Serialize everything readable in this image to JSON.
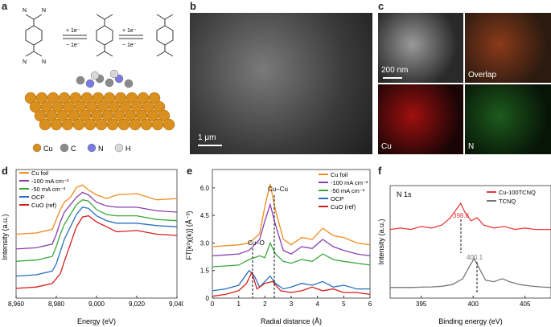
{
  "panels": {
    "a": {
      "label": "a",
      "arrow1_top": "+ 1e⁻",
      "arrow1_bottom": "− 1e⁻",
      "arrow2_top": "+ 1e⁻",
      "arrow2_bottom": "− 1e⁻",
      "atom_N": "N",
      "legend": [
        {
          "name": "Cu",
          "color": "#d9901f"
        },
        {
          "name": "C",
          "color": "#8a8a8a"
        },
        {
          "name": "N",
          "color": "#7a7ae0"
        },
        {
          "name": "H",
          "color": "#d8d8d8"
        }
      ]
    },
    "b": {
      "label": "b",
      "scale": "1 μm"
    },
    "c": {
      "label": "c",
      "scale": "200 nm",
      "overlap": "Overlap",
      "cu": "Cu",
      "n": "N"
    },
    "d": {
      "label": "d",
      "xlabel": "Energy (eV)",
      "ylabel": "Intensity (a.u.)",
      "ticks": [
        "8,960",
        "8,980",
        "9,000",
        "9,020",
        "9,040"
      ]
    },
    "e": {
      "label": "e",
      "xlabel": "Radial distance (Å)",
      "ylabel": "FT[k²χ(k)] (Å⁻³)",
      "xticks": [
        "0",
        "1",
        "2",
        "3",
        "4",
        "5",
        "6"
      ],
      "yticks": [
        "0",
        "1.5",
        "3.0",
        "4.5",
        "6.0"
      ],
      "ann_cucu": "Cu–Cu",
      "ann_cuo": "Cu–O"
    },
    "f": {
      "label": "f",
      "title": "N 1s",
      "xlabel": "Binding energy (eV)",
      "ylabel": "Intensity (a.u.)",
      "xticks": [
        "395",
        "400",
        "405"
      ],
      "peak1": "398.8",
      "peak2": "400.1"
    }
  },
  "chart_data": [
    {
      "type": "line",
      "panel": "d",
      "xlabel": "Energy (eV)",
      "ylabel": "Intensity (a.u.)",
      "xlim": [
        8960,
        9040
      ],
      "series": [
        {
          "name": "Cu foil",
          "color": "#f08a1c",
          "x": [
            8960,
            8970,
            8978,
            8980,
            8982,
            8984,
            8987,
            8990,
            8993,
            8996,
            9000,
            9005,
            9010,
            9020,
            9030,
            9040
          ],
          "y": [
            2.6,
            2.65,
            2.8,
            3.2,
            3.6,
            3.9,
            4.1,
            4.5,
            4.6,
            4.4,
            4.2,
            4.05,
            4.2,
            4.25,
            4.0,
            4.05
          ]
        },
        {
          "name": "-100 mA cm⁻²",
          "color": "#8a3fb0",
          "x": [
            8960,
            8970,
            8978,
            8980,
            8982,
            8984,
            8987,
            8990,
            8993,
            8996,
            9000,
            9005,
            9010,
            9020,
            9030,
            9040
          ],
          "y": [
            2.0,
            2.05,
            2.2,
            2.6,
            3.1,
            3.5,
            3.8,
            4.1,
            4.3,
            4.2,
            3.9,
            3.75,
            3.7,
            3.7,
            3.55,
            3.5
          ]
        },
        {
          "name": "-50 mA cm⁻²",
          "color": "#3aa63a",
          "x": [
            8960,
            8970,
            8978,
            8980,
            8982,
            8984,
            8987,
            8990,
            8993,
            8996,
            9000,
            9005,
            9010,
            9020,
            9030,
            9040
          ],
          "y": [
            1.5,
            1.55,
            1.7,
            2.1,
            2.6,
            3.0,
            3.4,
            3.8,
            4.0,
            3.95,
            3.6,
            3.4,
            3.35,
            3.35,
            3.2,
            3.15
          ]
        },
        {
          "name": "OCP",
          "color": "#2a6fc0",
          "x": [
            8960,
            8970,
            8978,
            8980,
            8982,
            8984,
            8987,
            8990,
            8993,
            8996,
            9000,
            9005,
            9010,
            9020,
            9030,
            9040
          ],
          "y": [
            0.9,
            0.95,
            1.1,
            1.4,
            1.9,
            2.4,
            2.9,
            3.4,
            3.7,
            3.65,
            3.35,
            3.15,
            3.05,
            3.05,
            2.95,
            2.9
          ]
        },
        {
          "name": "CuO (ref)",
          "color": "#d42020",
          "x": [
            8960,
            8970,
            8978,
            8980,
            8982,
            8984,
            8987,
            8990,
            8993,
            8996,
            9000,
            9005,
            9010,
            9020,
            9030,
            9040
          ],
          "y": [
            0.4,
            0.45,
            0.6,
            0.8,
            1.0,
            1.5,
            2.2,
            2.9,
            3.3,
            3.35,
            3.1,
            2.9,
            2.7,
            2.75,
            2.6,
            2.55
          ]
        }
      ]
    },
    {
      "type": "line",
      "panel": "e",
      "xlabel": "Radial distance (Å)",
      "ylabel": "FT[k²χ(k)] (Å⁻³)",
      "xlim": [
        0,
        6
      ],
      "ylim": [
        0,
        7
      ],
      "series": [
        {
          "name": "Cu foil",
          "color": "#f08a1c",
          "x": [
            0,
            0.5,
            1.0,
            1.4,
            1.8,
            2.0,
            2.2,
            2.4,
            2.7,
            3.0,
            3.4,
            3.8,
            4.2,
            4.6,
            5.0,
            5.5,
            6.0
          ],
          "y": [
            2.8,
            2.85,
            2.9,
            3.0,
            3.5,
            5.0,
            6.2,
            4.8,
            3.2,
            2.9,
            3.3,
            3.2,
            3.8,
            3.4,
            3.3,
            3.0,
            2.9
          ]
        },
        {
          "name": "-100 mA cm⁻²",
          "color": "#8a3fb0",
          "x": [
            0,
            0.5,
            1.0,
            1.4,
            1.8,
            2.0,
            2.2,
            2.4,
            2.7,
            3.0,
            3.4,
            3.8,
            4.2,
            4.6,
            5.0,
            5.5,
            6.0
          ],
          "y": [
            2.3,
            2.35,
            2.4,
            2.6,
            3.2,
            4.2,
            5.1,
            4.0,
            2.6,
            2.4,
            2.8,
            2.7,
            3.2,
            2.8,
            2.6,
            2.4,
            2.3
          ]
        },
        {
          "name": "-50 mA cm⁻²",
          "color": "#3aa63a",
          "x": [
            0,
            0.5,
            1.0,
            1.4,
            1.8,
            2.0,
            2.2,
            2.4,
            2.7,
            3.0,
            3.4,
            3.8,
            4.2,
            4.6,
            5.0,
            5.5,
            6.0
          ],
          "y": [
            1.7,
            1.75,
            1.8,
            2.1,
            2.3,
            2.2,
            3.0,
            2.4,
            2.0,
            1.9,
            2.1,
            2.0,
            2.4,
            2.1,
            2.0,
            1.9,
            1.8
          ]
        },
        {
          "name": "OCP",
          "color": "#2a6fc0",
          "x": [
            0,
            0.5,
            1.0,
            1.4,
            1.6,
            1.8,
            2.0,
            2.2,
            2.4,
            2.7,
            3.0,
            3.4,
            3.8,
            4.2,
            4.6,
            5.0,
            5.5,
            6.0
          ],
          "y": [
            0.4,
            0.5,
            0.7,
            1.5,
            1.2,
            0.6,
            0.9,
            1.2,
            0.8,
            0.5,
            0.6,
            0.8,
            0.7,
            0.9,
            0.6,
            0.7,
            0.5,
            0.5
          ]
        },
        {
          "name": "CuO (ref)",
          "color": "#d42020",
          "x": [
            0,
            0.5,
            1.0,
            1.3,
            1.5,
            1.7,
            2.0,
            2.3,
            2.6,
            3.0,
            3.4,
            3.8,
            4.2,
            4.6,
            5.0,
            5.5,
            6.0
          ],
          "y": [
            0.1,
            0.2,
            0.4,
            0.8,
            1.4,
            0.5,
            0.8,
            0.9,
            0.4,
            0.3,
            0.4,
            0.6,
            0.4,
            0.5,
            0.3,
            0.3,
            0.2
          ]
        }
      ]
    },
    {
      "type": "line",
      "panel": "f",
      "xlabel": "Binding energy (eV)",
      "ylabel": "Intensity (a.u.)",
      "xlim": [
        392,
        407.5
      ],
      "series": [
        {
          "name": "Cu-100TCNQ",
          "color": "#e83a3a",
          "x": [
            392,
            393,
            394,
            395,
            396,
            397,
            397.8,
            398.4,
            398.8,
            399.2,
            399.8,
            400.4,
            401,
            402,
            403,
            404,
            405,
            406,
            407.5
          ],
          "y": [
            2.2,
            2.25,
            2.2,
            2.3,
            2.25,
            2.35,
            2.6,
            2.9,
            3.1,
            2.8,
            2.5,
            2.6,
            2.35,
            2.25,
            2.3,
            2.2,
            2.25,
            2.2,
            2.2
          ]
        },
        {
          "name": "TCNQ",
          "color": "#777777",
          "x": [
            392,
            393,
            394,
            395,
            396,
            397,
            398,
            399,
            399.6,
            400.1,
            400.6,
            401.2,
            402,
            402.8,
            403.5,
            404.5,
            405.5,
            406.5,
            407.5
          ],
          "y": [
            0.2,
            0.2,
            0.2,
            0.21,
            0.22,
            0.24,
            0.3,
            0.5,
            0.9,
            1.2,
            0.85,
            0.45,
            0.4,
            0.5,
            0.4,
            0.3,
            0.25,
            0.22,
            0.2
          ]
        }
      ]
    }
  ]
}
